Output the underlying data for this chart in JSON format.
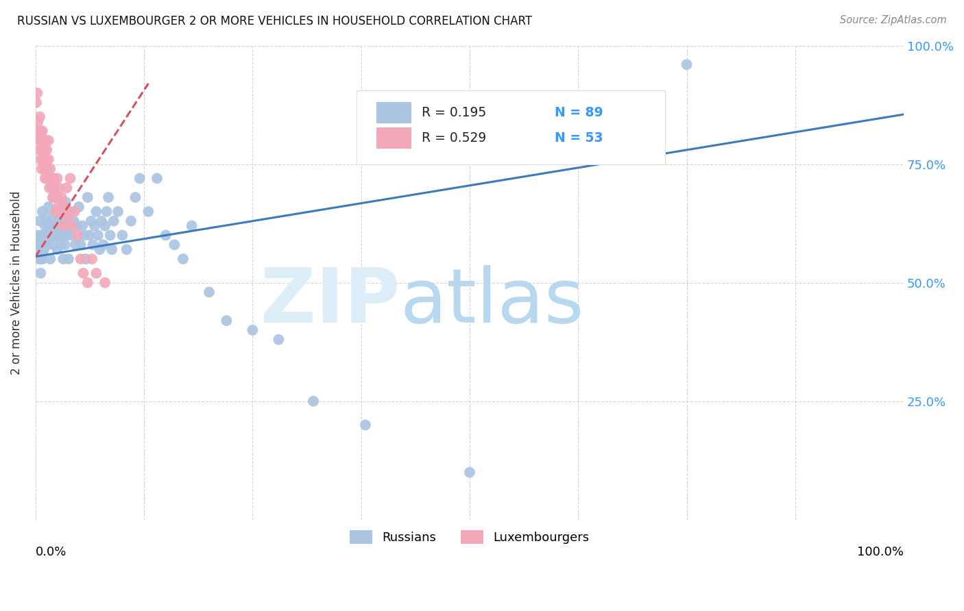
{
  "title": "RUSSIAN VS LUXEMBOURGER 2 OR MORE VEHICLES IN HOUSEHOLD CORRELATION CHART",
  "source": "Source: ZipAtlas.com",
  "ylabel": "2 or more Vehicles in Household",
  "xlim": [
    0.0,
    1.0
  ],
  "ylim": [
    0.0,
    1.0
  ],
  "ytick_vals": [
    0.0,
    0.25,
    0.5,
    0.75,
    1.0
  ],
  "ytick_labels_right": [
    "",
    "25.0%",
    "50.0%",
    "75.0%",
    "100.0%"
  ],
  "legend_blue_label": "Russians",
  "legend_pink_label": "Luxembourgers",
  "r_blue": "R = 0.195",
  "n_blue": "N = 89",
  "r_pink": "R = 0.529",
  "n_pink": "N = 53",
  "blue_color": "#aac4e2",
  "pink_color": "#f2a8b8",
  "trendline_blue_color": "#3a7abf",
  "trendline_pink_color": "#d94f5c",
  "blue_trendline_x": [
    0.0,
    1.0
  ],
  "blue_trendline_y": [
    0.555,
    0.855
  ],
  "pink_trendline_x": [
    0.0,
    0.13
  ],
  "pink_trendline_y": [
    0.555,
    0.92
  ],
  "russians_x": [
    0.005,
    0.006,
    0.007,
    0.008,
    0.009,
    0.01,
    0.011,
    0.012,
    0.013,
    0.014,
    0.015,
    0.015,
    0.016,
    0.017,
    0.018,
    0.019,
    0.02,
    0.021,
    0.022,
    0.023,
    0.024,
    0.025,
    0.026,
    0.027,
    0.028,
    0.029,
    0.03,
    0.031,
    0.032,
    0.033,
    0.034,
    0.035,
    0.036,
    0.037,
    0.038,
    0.04,
    0.042,
    0.044,
    0.046,
    0.048,
    0.05,
    0.052,
    0.054,
    0.056,
    0.058,
    0.06,
    0.062,
    0.064,
    0.066,
    0.068,
    0.07,
    0.072,
    0.074,
    0.076,
    0.078,
    0.08,
    0.082,
    0.084,
    0.086,
    0.088,
    0.09,
    0.095,
    0.1,
    0.105,
    0.11,
    0.115,
    0.12,
    0.13,
    0.14,
    0.15,
    0.16,
    0.17,
    0.18,
    0.2,
    0.22,
    0.25,
    0.28,
    0.32,
    0.38,
    0.5,
    0.002,
    0.003,
    0.004,
    0.005,
    0.006,
    0.007,
    0.008,
    0.009,
    0.75
  ],
  "russians_y": [
    0.63,
    0.58,
    0.55,
    0.65,
    0.6,
    0.57,
    0.62,
    0.6,
    0.64,
    0.58,
    0.59,
    0.66,
    0.62,
    0.55,
    0.6,
    0.63,
    0.68,
    0.58,
    0.62,
    0.6,
    0.65,
    0.57,
    0.63,
    0.6,
    0.62,
    0.58,
    0.66,
    0.6,
    0.55,
    0.63,
    0.58,
    0.67,
    0.6,
    0.62,
    0.55,
    0.65,
    0.6,
    0.63,
    0.58,
    0.62,
    0.66,
    0.58,
    0.62,
    0.6,
    0.55,
    0.68,
    0.6,
    0.63,
    0.58,
    0.62,
    0.65,
    0.6,
    0.57,
    0.63,
    0.58,
    0.62,
    0.65,
    0.68,
    0.6,
    0.57,
    0.63,
    0.65,
    0.6,
    0.57,
    0.63,
    0.68,
    0.72,
    0.65,
    0.72,
    0.6,
    0.58,
    0.55,
    0.62,
    0.48,
    0.42,
    0.4,
    0.38,
    0.25,
    0.2,
    0.1,
    0.57,
    0.6,
    0.55,
    0.58,
    0.52,
    0.6,
    0.55,
    0.57,
    0.96
  ],
  "luxembourgers_x": [
    0.001,
    0.002,
    0.003,
    0.003,
    0.004,
    0.005,
    0.005,
    0.006,
    0.006,
    0.007,
    0.007,
    0.008,
    0.008,
    0.009,
    0.009,
    0.01,
    0.01,
    0.011,
    0.012,
    0.012,
    0.013,
    0.013,
    0.014,
    0.015,
    0.015,
    0.016,
    0.017,
    0.018,
    0.019,
    0.02,
    0.021,
    0.022,
    0.023,
    0.024,
    0.025,
    0.026,
    0.027,
    0.028,
    0.03,
    0.032,
    0.034,
    0.036,
    0.038,
    0.04,
    0.042,
    0.045,
    0.048,
    0.052,
    0.055,
    0.06,
    0.065,
    0.07,
    0.08
  ],
  "luxembourgers_y": [
    0.88,
    0.9,
    0.84,
    0.82,
    0.78,
    0.85,
    0.8,
    0.82,
    0.76,
    0.8,
    0.74,
    0.82,
    0.78,
    0.76,
    0.8,
    0.74,
    0.78,
    0.72,
    0.8,
    0.76,
    0.74,
    0.78,
    0.72,
    0.76,
    0.8,
    0.7,
    0.74,
    0.72,
    0.7,
    0.68,
    0.72,
    0.7,
    0.65,
    0.68,
    0.72,
    0.66,
    0.7,
    0.65,
    0.68,
    0.62,
    0.66,
    0.7,
    0.64,
    0.72,
    0.62,
    0.65,
    0.6,
    0.55,
    0.52,
    0.5,
    0.55,
    0.52,
    0.5
  ]
}
